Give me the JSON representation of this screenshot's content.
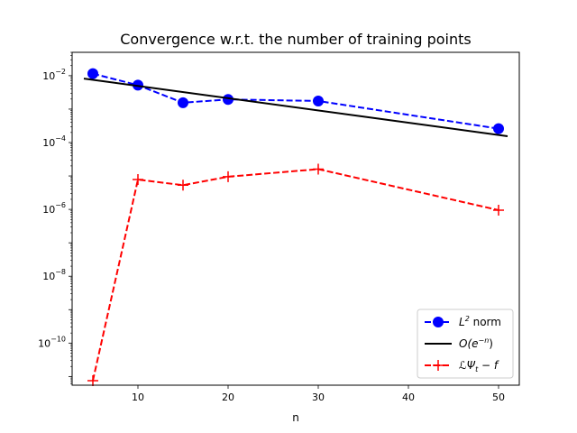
{
  "chart_data": {
    "type": "line",
    "title": "Convergence w.r.t. the number of training points",
    "xlabel": "n",
    "ylabel": "",
    "y_scale": "log",
    "xlim": [
      2.7,
      52.3
    ],
    "ylim": [
      5.5e-12,
      0.05
    ],
    "x_ticks": [
      10,
      20,
      30,
      40,
      50
    ],
    "y_ticks": [
      {
        "exp": -10,
        "value": 1e-10
      },
      {
        "exp": -8,
        "value": 1e-08
      },
      {
        "exp": -6,
        "value": 1e-06
      },
      {
        "exp": -4,
        "value": 0.0001
      },
      {
        "exp": -2,
        "value": 0.01
      }
    ],
    "legend_position": "lower right",
    "series": [
      {
        "name": "L² norm",
        "legend_main": "L",
        "legend_sup": "2",
        "legend_rest": " norm",
        "color": "#0000ff",
        "linestyle": "dashed",
        "marker": "circle",
        "x": [
          5,
          10,
          15,
          20,
          30,
          50
        ],
        "y": [
          0.0115,
          0.0052,
          0.00155,
          0.00195,
          0.00175,
          0.00026
        ]
      },
      {
        "name": "O(e^{-n})",
        "legend_main": "O(e",
        "legend_sup": "−n",
        "legend_rest": ")",
        "color": "#000000",
        "linestyle": "solid",
        "marker": "none",
        "x": [
          4,
          51
        ],
        "y": [
          0.0082,
          0.000155
        ]
      },
      {
        "name": "ℒΨt − f",
        "legend_main": "ℒΨ",
        "legend_sub": "t",
        "legend_rest": " − f",
        "color": "#ff0000",
        "linestyle": "dashed",
        "marker": "plus",
        "x": [
          5,
          10,
          15,
          20,
          30,
          50
        ],
        "y": [
          7.5e-12,
          7.8e-06,
          5.3e-06,
          9.5e-06,
          1.6e-05,
          9.5e-07
        ]
      }
    ]
  }
}
